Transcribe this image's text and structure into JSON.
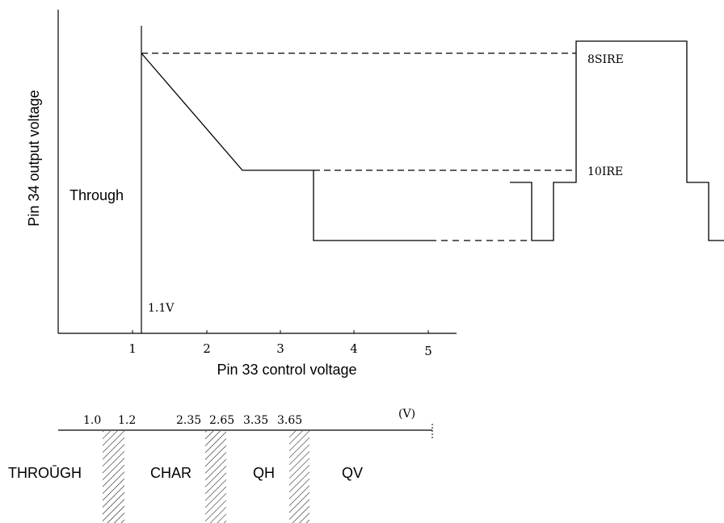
{
  "graph": {
    "y_axis_label": "Pin 34 output voltage",
    "x_axis_label": "Pin 33 control voltage",
    "x_ticks": [
      "1",
      "2",
      "3",
      "4",
      "5"
    ],
    "through_label": "Through",
    "threshold_label": "1.1V",
    "level_high_label": "8SIRE",
    "level_low_label": "10IRE"
  },
  "scale": {
    "unit_label": "(V)",
    "boundaries": [
      "1.0",
      "1.2",
      "2.35",
      "2.65",
      "3.35",
      "3.65"
    ],
    "modes": [
      "THROŪGH",
      "CHAR",
      "QH",
      "QV"
    ]
  }
}
